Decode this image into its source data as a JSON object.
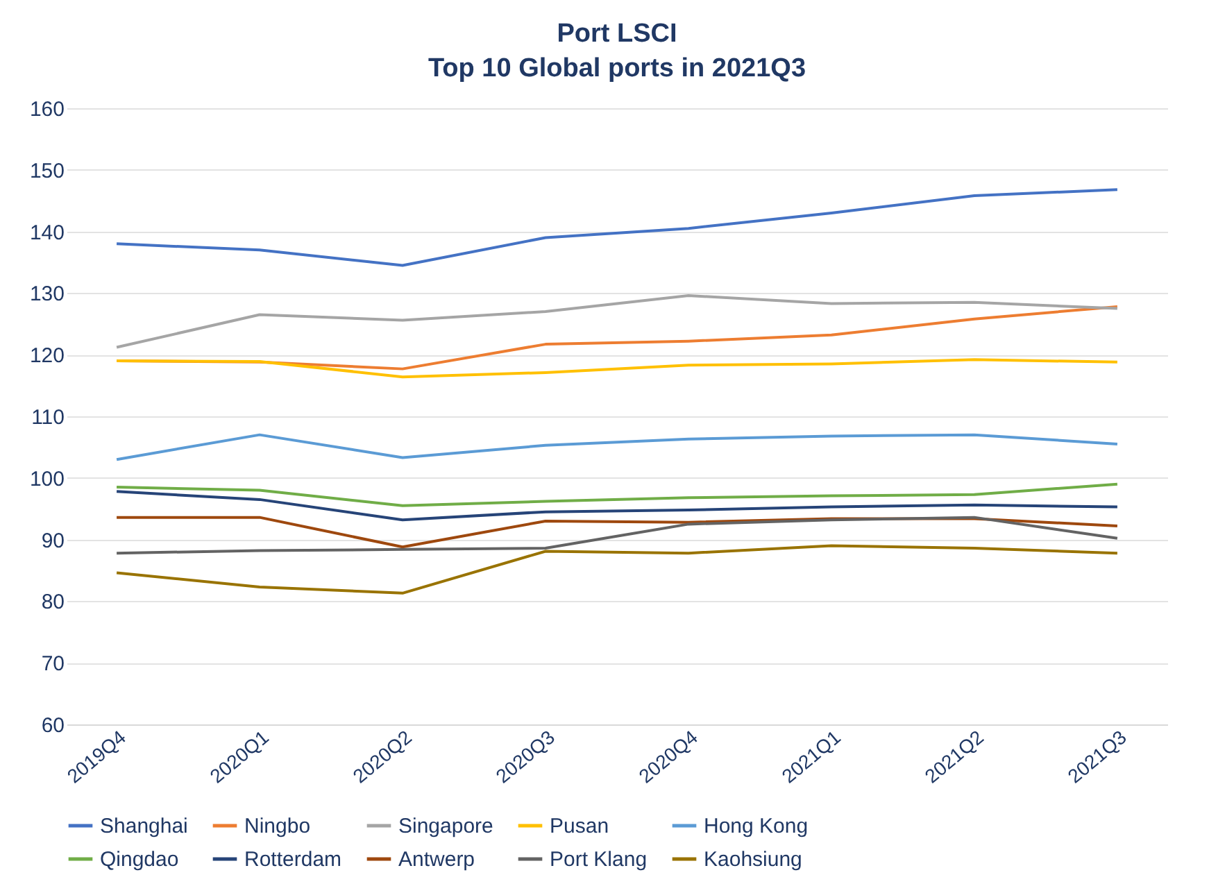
{
  "chart_data": {
    "type": "line",
    "title": "Port LSCI",
    "subtitle": "Top 10 Global ports in 2021Q3",
    "categories": [
      "2019Q4",
      "2020Q1",
      "2020Q2",
      "2020Q3",
      "2020Q4",
      "2021Q1",
      "2021Q2",
      "2021Q3"
    ],
    "ylim": [
      60,
      160
    ],
    "yticks": [
      60,
      70,
      80,
      90,
      100,
      110,
      120,
      130,
      140,
      150,
      160
    ],
    "grid": "y",
    "legend": "bottom",
    "marker": "none",
    "line_style": "solid",
    "series": [
      {
        "name": "Shanghai",
        "color": "#4472c4",
        "values": [
          138,
          137,
          134.5,
          139,
          140.5,
          143,
          145.8,
          146.8
        ]
      },
      {
        "name": "Ningbo",
        "color": "#ed7d31",
        "values": [
          119,
          118.8,
          117.7,
          121.7,
          122.2,
          123.2,
          125.8,
          127.8
        ]
      },
      {
        "name": "Singapore",
        "color": "#a5a5a5",
        "values": [
          121.2,
          126.5,
          125.6,
          127,
          129.6,
          128.3,
          128.5,
          127.5
        ]
      },
      {
        "name": "Pusan",
        "color": "#ffc000",
        "values": [
          119,
          118.9,
          116.4,
          117.1,
          118.3,
          118.5,
          119.2,
          118.8
        ]
      },
      {
        "name": "Hong Kong",
        "color": "#5b9bd5",
        "values": [
          103,
          107,
          103.3,
          105.3,
          106.3,
          106.8,
          107,
          105.5
        ]
      },
      {
        "name": "Qingdao",
        "color": "#70ad47",
        "values": [
          98.5,
          98,
          95.5,
          96.2,
          96.8,
          97.1,
          97.3,
          99
        ]
      },
      {
        "name": "Rotterdam",
        "color": "#264478",
        "values": [
          97.8,
          96.5,
          93.2,
          94.5,
          94.8,
          95.3,
          95.6,
          95.3
        ]
      },
      {
        "name": "Antwerp",
        "color": "#9e480e",
        "values": [
          93.6,
          93.6,
          88.8,
          93,
          92.8,
          93.4,
          93.4,
          92.2
        ]
      },
      {
        "name": "Port Klang",
        "color": "#636363",
        "values": [
          87.8,
          88.2,
          88.4,
          88.6,
          92.5,
          93.2,
          93.6,
          90.2
        ]
      },
      {
        "name": "Kaohsiung",
        "color": "#997300",
        "values": [
          84.6,
          82.3,
          81.3,
          88.1,
          87.8,
          89,
          88.6,
          87.8
        ]
      }
    ]
  }
}
